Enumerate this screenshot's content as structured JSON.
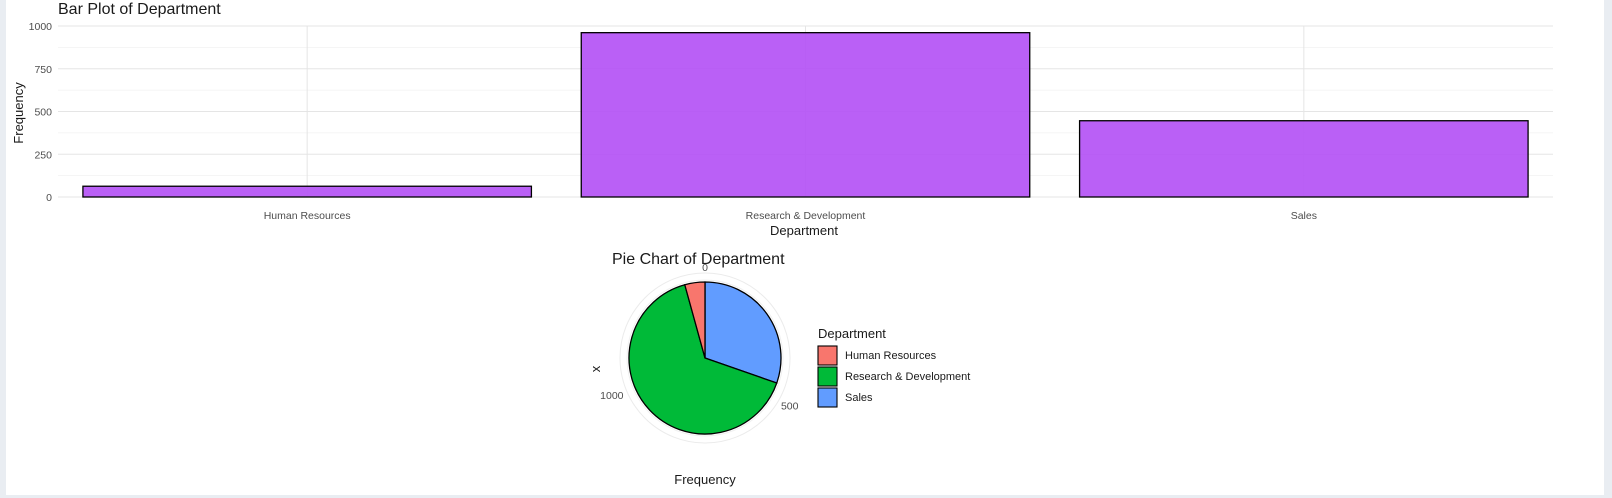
{
  "chart_data": [
    {
      "type": "bar",
      "title": "Bar Plot of Department",
      "xlabel": "Department",
      "ylabel": "Frequency",
      "categories": [
        "Human Resources",
        "Research & Development",
        "Sales"
      ],
      "values": [
        63,
        961,
        446
      ],
      "ylim": [
        0,
        1000
      ],
      "yticks": [
        0,
        250,
        500,
        750,
        1000
      ],
      "bar_color": "#b452f5",
      "grid": true
    },
    {
      "type": "pie",
      "title": "Pie Chart of Department",
      "xlabel": "Frequency",
      "ylabel": "x",
      "legend_title": "Department",
      "legend_position": "right",
      "categories": [
        "Human Resources",
        "Research & Development",
        "Sales"
      ],
      "values": [
        63,
        961,
        446
      ],
      "colors": [
        "#f8766d",
        "#00ba38",
        "#619cff"
      ],
      "radial_ticks": [
        0,
        500,
        1000
      ]
    }
  ]
}
